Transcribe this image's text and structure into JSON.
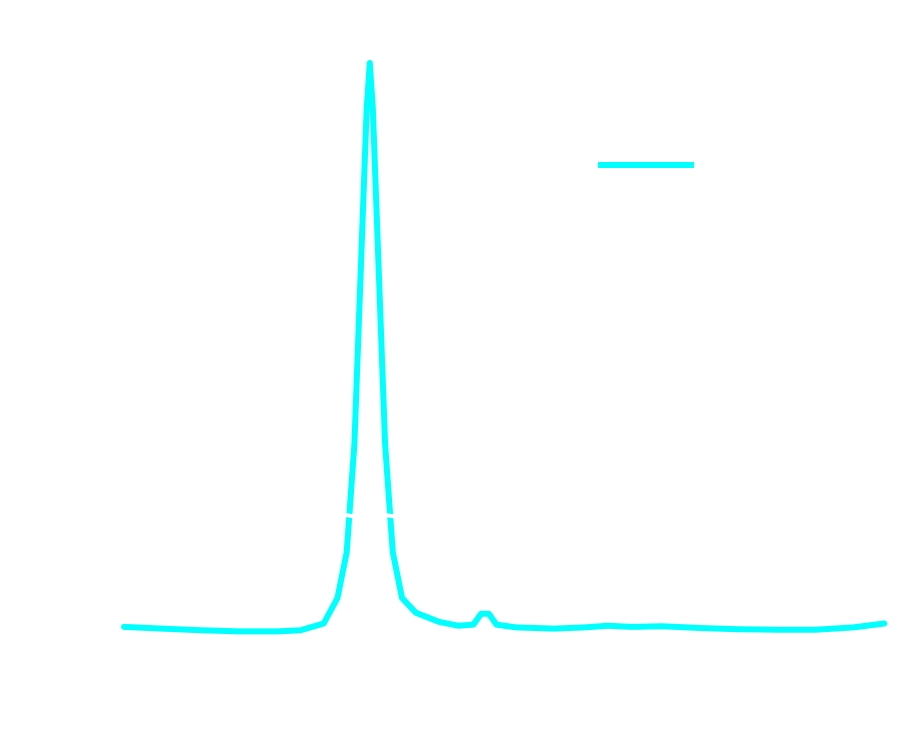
{
  "chart_data": {
    "type": "line",
    "title": "",
    "xlabel": "",
    "ylabel": "",
    "xlim": [
      0,
      1000
    ],
    "ylim": [
      0,
      100
    ],
    "grid": false,
    "legend": {
      "position": "top-right",
      "entries": [
        {
          "name": "",
          "color": "#00FFFF"
        }
      ]
    },
    "series": [
      {
        "name": "",
        "color": "#00FFFF",
        "points": [
          [
            0,
            0.9
          ],
          [
            50,
            0.6
          ],
          [
            100,
            0.3
          ],
          [
            150,
            0.1
          ],
          [
            200,
            0.1
          ],
          [
            230,
            0.3
          ],
          [
            260,
            1.5
          ],
          [
            278,
            6
          ],
          [
            290,
            14
          ],
          [
            300,
            33
          ],
          [
            310,
            70
          ],
          [
            316,
            92
          ],
          [
            320,
            100
          ],
          [
            324,
            92
          ],
          [
            330,
            70
          ],
          [
            340,
            33
          ],
          [
            350,
            14
          ],
          [
            362,
            6
          ],
          [
            380,
            3.4
          ],
          [
            410,
            1.8
          ],
          [
            435,
            1.1
          ],
          [
            455,
            1.3
          ],
          [
            465,
            3.2
          ],
          [
            475,
            3.2
          ],
          [
            485,
            1.3
          ],
          [
            510,
            0.8
          ],
          [
            560,
            0.6
          ],
          [
            600,
            0.8
          ],
          [
            630,
            1.1
          ],
          [
            660,
            0.9
          ],
          [
            700,
            1.0
          ],
          [
            750,
            0.7
          ],
          [
            800,
            0.5
          ],
          [
            850,
            0.4
          ],
          [
            900,
            0.4
          ],
          [
            950,
            0.8
          ],
          [
            990,
            1.5
          ]
        ]
      }
    ],
    "annotations": [
      {
        "type": "break",
        "x": 294,
        "y": 20
      },
      {
        "type": "break",
        "x": 346,
        "y": 20
      }
    ]
  }
}
